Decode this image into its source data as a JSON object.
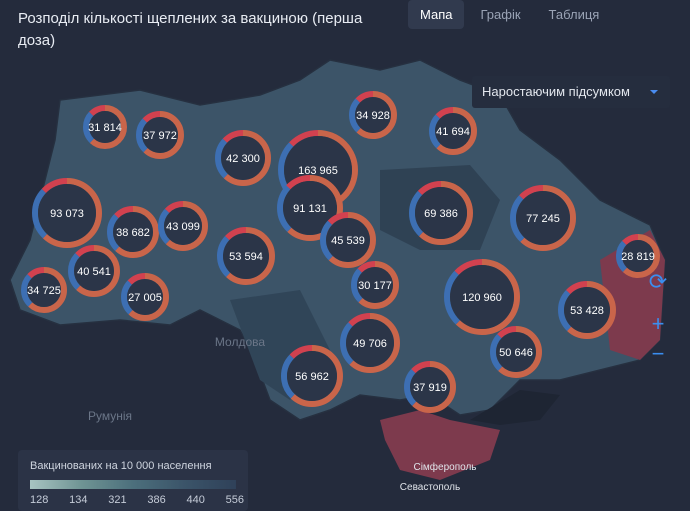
{
  "header": {
    "title": "Розподіл кількості щеплених за вакциною (перша доза)",
    "tabs": [
      "Мапа",
      "Графік",
      "Таблиця"
    ]
  },
  "dropdown": "Наростаючим підсумком",
  "markers": [
    {
      "label": "31 814"
    },
    {
      "label": "37 972"
    },
    {
      "label": "42 300"
    },
    {
      "label": "163 965"
    },
    {
      "label": "34 928"
    },
    {
      "label": "41 694"
    },
    {
      "label": "93 073"
    },
    {
      "label": "91 131"
    },
    {
      "label": "38 682"
    },
    {
      "label": "43 099"
    },
    {
      "label": "69 386"
    },
    {
      "label": "77 245"
    },
    {
      "label": "45 539"
    },
    {
      "label": "53 594"
    },
    {
      "label": "28 819"
    },
    {
      "label": "40 541"
    },
    {
      "label": "34 725"
    },
    {
      "label": "30 177"
    },
    {
      "label": "27 005"
    },
    {
      "label": "120 960"
    },
    {
      "label": "53 428"
    },
    {
      "label": "49 706"
    },
    {
      "label": "50 646"
    },
    {
      "label": "56 962"
    },
    {
      "label": "37 919"
    }
  ],
  "places": [
    "Молдова",
    "Румунія",
    "Сімферополь",
    "Севастополь"
  ],
  "legend": {
    "title": "Вакцинованих на 10 000 населення",
    "ticks": [
      128,
      134,
      321,
      386,
      440,
      556
    ]
  }
}
